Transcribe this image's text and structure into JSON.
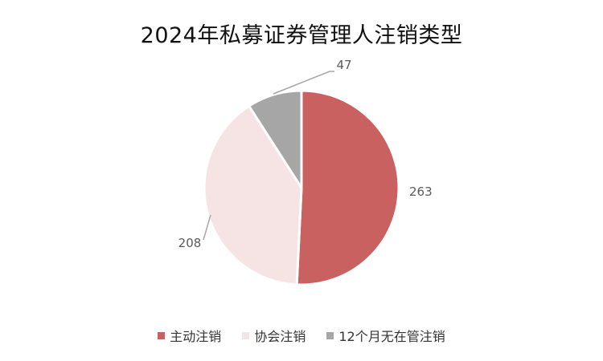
{
  "chart_data": {
    "type": "pie",
    "title": "2024年私募证券管理人注销类型",
    "categories": [
      "主动注销",
      "协会注销",
      "12个月无在管注销"
    ],
    "values": [
      263,
      208,
      47
    ],
    "colors": [
      "#C86160",
      "#F6E4E5",
      "#A6A6A6"
    ],
    "data_labels": [
      "263",
      "208",
      "47"
    ],
    "legend_position": "bottom",
    "start_angle_deg": 0,
    "direction": "clockwise"
  }
}
